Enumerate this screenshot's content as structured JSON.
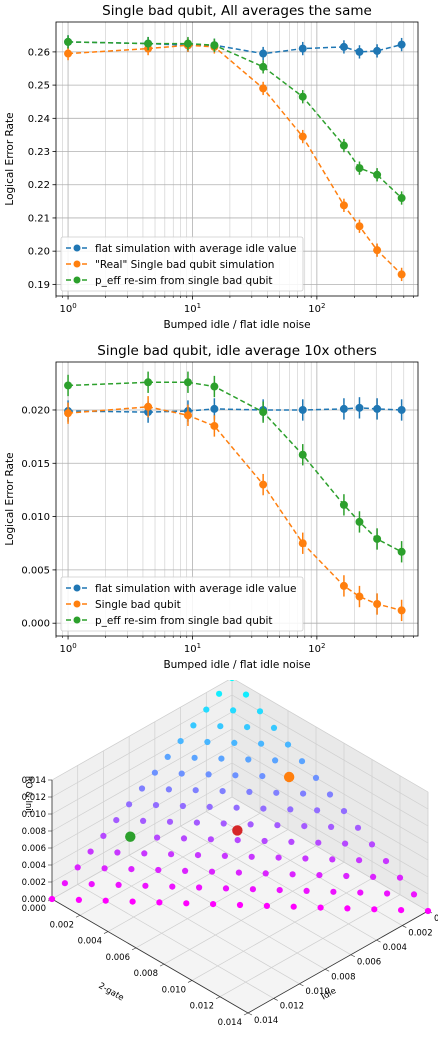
{
  "chart_data": [
    {
      "type": "line",
      "title": "Single bad qubit, All averages the same",
      "xlabel": "Bumped idle / flat idle noise",
      "ylabel": "Logical Error Rate",
      "xscale": "log",
      "xlim": [
        0.8,
        650
      ],
      "ylim": [
        0.1865,
        0.269
      ],
      "xticks": [
        1,
        10,
        100
      ],
      "xtick_labels": [
        "10^0",
        "10^1",
        "10^2"
      ],
      "yticks": [
        0.19,
        0.2,
        0.21,
        0.22,
        0.23,
        0.24,
        0.25,
        0.26
      ],
      "ytick_labels": [
        "0.19",
        "0.20",
        "0.21",
        "0.22",
        "0.23",
        "0.24",
        "0.25",
        "0.26"
      ],
      "grid": true,
      "legend_position": "lower-left",
      "x": [
        1,
        4.4,
        9.2,
        15,
        37,
        77,
        165,
        220,
        305,
        480
      ],
      "series": [
        {
          "name": "flat simulation with average idle value",
          "color": "#1f77b4",
          "values": [
            0.263,
            0.2625,
            0.262,
            0.262,
            0.2595,
            0.261,
            0.2615,
            0.26,
            0.2603,
            0.2622
          ],
          "errors": [
            0.002,
            0.002,
            0.002,
            0.002,
            0.002,
            0.002,
            0.002,
            0.002,
            0.002,
            0.002
          ]
        },
        {
          "name": "\"Real\" Single bad qubit simulation",
          "color": "#ff7f0e",
          "values": [
            0.2595,
            0.261,
            0.262,
            0.2615,
            0.249,
            0.2345,
            0.2138,
            0.2075,
            0.2003,
            0.193
          ],
          "errors": [
            0.002,
            0.002,
            0.002,
            0.002,
            0.002,
            0.002,
            0.002,
            0.002,
            0.002,
            0.002
          ]
        },
        {
          "name": "p_eff re-sim from single bad qubit",
          "color": "#2ca02c",
          "values": [
            0.263,
            0.2625,
            0.2625,
            0.262,
            0.2555,
            0.2465,
            0.2318,
            0.225,
            0.223,
            0.216
          ],
          "errors": [
            0.002,
            0.002,
            0.002,
            0.002,
            0.002,
            0.002,
            0.002,
            0.002,
            0.002,
            0.002
          ]
        }
      ]
    },
    {
      "type": "line",
      "title": "Single bad qubit, idle average 10x others",
      "xlabel": "Bumped idle / flat idle noise",
      "ylabel": "Logical Error Rate",
      "xscale": "log",
      "xlim": [
        0.8,
        650
      ],
      "ylim": [
        -0.0012,
        0.0245
      ],
      "xticks": [
        1,
        10,
        100
      ],
      "xtick_labels": [
        "10^0",
        "10^1",
        "10^2"
      ],
      "yticks": [
        0.0,
        0.005,
        0.01,
        0.015,
        0.02
      ],
      "ytick_labels": [
        "0.000",
        "0.005",
        "0.010",
        "0.015",
        "0.020"
      ],
      "grid": true,
      "legend_position": "lower-left",
      "x": [
        1,
        4.4,
        9.2,
        15,
        37,
        77,
        165,
        220,
        305,
        480
      ],
      "series": [
        {
          "name": "flat simulation with average idle value",
          "color": "#1f77b4",
          "values": [
            0.0199,
            0.0198,
            0.0199,
            0.0201,
            0.02,
            0.02,
            0.0201,
            0.0202,
            0.0201,
            0.02
          ],
          "errors": [
            0.001,
            0.001,
            0.001,
            0.001,
            0.001,
            0.001,
            0.001,
            0.001,
            0.001,
            0.001
          ]
        },
        {
          "name": "Single bad qubit",
          "color": "#ff7f0e",
          "values": [
            0.0197,
            0.0203,
            0.0195,
            0.0185,
            0.013,
            0.0075,
            0.0035,
            0.0025,
            0.0018,
            0.0012
          ],
          "errors": [
            0.001,
            0.001,
            0.001,
            0.001,
            0.001,
            0.001,
            0.001,
            0.001,
            0.001,
            0.001
          ]
        },
        {
          "name": "p_eff re-sim from single bad qubit",
          "color": "#2ca02c",
          "values": [
            0.0223,
            0.0226,
            0.0226,
            0.0222,
            0.0198,
            0.0158,
            0.0111,
            0.0095,
            0.0079,
            0.0067
          ],
          "errors": [
            0.001,
            0.001,
            0.001,
            0.001,
            0.001,
            0.001,
            0.001,
            0.001,
            0.001,
            0.001
          ]
        }
      ]
    },
    {
      "type": "scatter",
      "subtype": "3d-scatter",
      "xlabel": "2-gate",
      "ylabel": "Idle",
      "zlabel": "RO & Init",
      "xlim": [
        0,
        0.014
      ],
      "ylim": [
        0,
        0.014
      ],
      "zlim": [
        0,
        0.014
      ],
      "xticks": [
        0.0,
        0.002,
        0.004,
        0.006,
        0.008,
        0.01,
        0.012,
        0.014
      ],
      "xtick_labels": [
        "0.000",
        "0.002",
        "0.004",
        "0.006",
        "0.008",
        "0.010",
        "0.012",
        "0.014"
      ],
      "yticks": [
        0.0,
        0.002,
        0.004,
        0.006,
        0.008,
        0.01,
        0.012,
        0.014
      ],
      "ytick_labels": [
        "0.000",
        "0.002",
        "0.004",
        "0.006",
        "0.008",
        "0.010",
        "0.012",
        "0.014"
      ],
      "zticks": [
        0.0,
        0.002,
        0.004,
        0.006,
        0.008,
        0.01,
        0.012,
        0.014
      ],
      "ztick_labels": [
        "0.000",
        "0.002",
        "0.004",
        "0.006",
        "0.008",
        "0.010",
        "0.012",
        "0.014"
      ],
      "grid": true,
      "point_set": "simplex grid, components sum to 0.014",
      "grid_step": 0.001,
      "colormap": "cool",
      "highlights": [
        {
          "x": 0.0047,
          "y": 0.0047,
          "z": 0.0046,
          "color": "#d62728"
        },
        {
          "x": 0.001,
          "y": 0.005,
          "z": 0.008,
          "color": "#ff7f0e"
        },
        {
          "x": 0.009,
          "y": 0.001,
          "z": 0.004,
          "color": "#2ca02c"
        }
      ]
    }
  ]
}
